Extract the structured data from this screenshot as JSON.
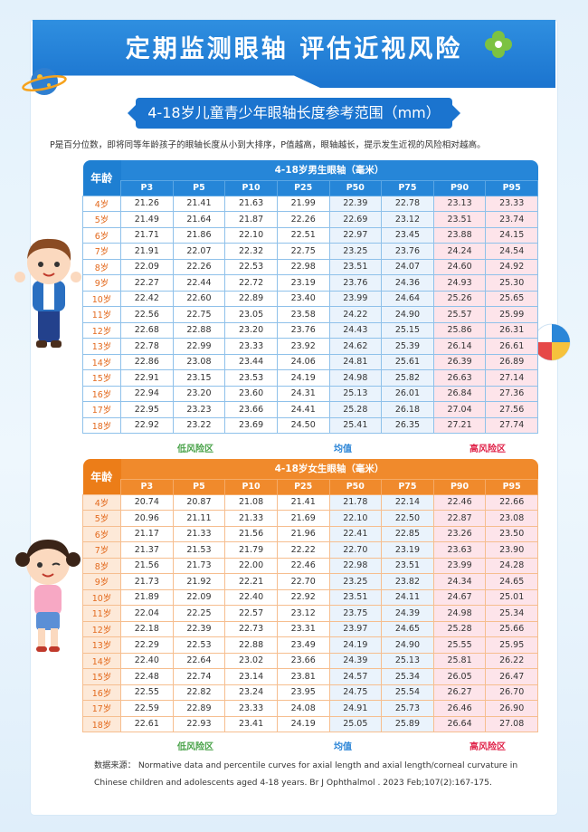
{
  "banner_title": "定期监测眼轴  评估近视风险",
  "subtitle": "4-18岁儿童青少年眼轴长度参考范围（mm）",
  "intro": "P是百分位数，即将同等年龄孩子的眼轴长度从小到大排序，P值越高，眼轴越长，提示发生近视的风险相对越高。",
  "age_header": "年龄",
  "percentiles": [
    "P3",
    "P5",
    "P10",
    "P25",
    "P50",
    "P75",
    "P90",
    "P95"
  ],
  "legend": {
    "low": "低风险区",
    "mid": "均值",
    "high": "高风险区"
  },
  "boys": {
    "title": "4-18岁男生眼轴（毫米）",
    "rows": [
      {
        "age": "4岁",
        "v": [
          "21.26",
          "21.41",
          "21.63",
          "21.99",
          "22.39",
          "22.78",
          "23.13",
          "23.33"
        ]
      },
      {
        "age": "5岁",
        "v": [
          "21.49",
          "21.64",
          "21.87",
          "22.26",
          "22.69",
          "23.12",
          "23.51",
          "23.74"
        ]
      },
      {
        "age": "6岁",
        "v": [
          "21.71",
          "21.86",
          "22.10",
          "22.51",
          "22.97",
          "23.45",
          "23.88",
          "24.15"
        ]
      },
      {
        "age": "7岁",
        "v": [
          "21.91",
          "22.07",
          "22.32",
          "22.75",
          "23.25",
          "23.76",
          "24.24",
          "24.54"
        ]
      },
      {
        "age": "8岁",
        "v": [
          "22.09",
          "22.26",
          "22.53",
          "22.98",
          "23.51",
          "24.07",
          "24.60",
          "24.92"
        ]
      },
      {
        "age": "9岁",
        "v": [
          "22.27",
          "22.44",
          "22.72",
          "23.19",
          "23.76",
          "24.36",
          "24.93",
          "25.30"
        ]
      },
      {
        "age": "10岁",
        "v": [
          "22.42",
          "22.60",
          "22.89",
          "23.40",
          "23.99",
          "24.64",
          "25.26",
          "25.65"
        ]
      },
      {
        "age": "11岁",
        "v": [
          "22.56",
          "22.75",
          "23.05",
          "23.58",
          "24.22",
          "24.90",
          "25.57",
          "25.99"
        ]
      },
      {
        "age": "12岁",
        "v": [
          "22.68",
          "22.88",
          "23.20",
          "23.76",
          "24.43",
          "25.15",
          "25.86",
          "26.31"
        ]
      },
      {
        "age": "13岁",
        "v": [
          "22.78",
          "22.99",
          "23.33",
          "23.92",
          "24.62",
          "25.39",
          "26.14",
          "26.61"
        ]
      },
      {
        "age": "14岁",
        "v": [
          "22.86",
          "23.08",
          "23.44",
          "24.06",
          "24.81",
          "25.61",
          "26.39",
          "26.89"
        ]
      },
      {
        "age": "15岁",
        "v": [
          "22.91",
          "23.15",
          "23.53",
          "24.19",
          "24.98",
          "25.82",
          "26.63",
          "27.14"
        ]
      },
      {
        "age": "16岁",
        "v": [
          "22.94",
          "23.20",
          "23.60",
          "24.31",
          "25.13",
          "26.01",
          "26.84",
          "27.36"
        ]
      },
      {
        "age": "17岁",
        "v": [
          "22.95",
          "23.23",
          "23.66",
          "24.41",
          "25.28",
          "26.18",
          "27.04",
          "27.56"
        ]
      },
      {
        "age": "18岁",
        "v": [
          "22.92",
          "23.22",
          "23.69",
          "24.50",
          "25.41",
          "26.35",
          "27.21",
          "27.74"
        ]
      }
    ]
  },
  "girls": {
    "title": "4-18岁女生眼轴（毫米）",
    "rows": [
      {
        "age": "4岁",
        "v": [
          "20.74",
          "20.87",
          "21.08",
          "21.41",
          "21.78",
          "22.14",
          "22.46",
          "22.66"
        ]
      },
      {
        "age": "5岁",
        "v": [
          "20.96",
          "21.11",
          "21.33",
          "21.69",
          "22.10",
          "22.50",
          "22.87",
          "23.08"
        ]
      },
      {
        "age": "6岁",
        "v": [
          "21.17",
          "21.33",
          "21.56",
          "21.96",
          "22.41",
          "22.85",
          "23.26",
          "23.50"
        ]
      },
      {
        "age": "7岁",
        "v": [
          "21.37",
          "21.53",
          "21.79",
          "22.22",
          "22.70",
          "23.19",
          "23.63",
          "23.90"
        ]
      },
      {
        "age": "8岁",
        "v": [
          "21.56",
          "21.73",
          "22.00",
          "22.46",
          "22.98",
          "23.51",
          "23.99",
          "24.28"
        ]
      },
      {
        "age": "9岁",
        "v": [
          "21.73",
          "21.92",
          "22.21",
          "22.70",
          "23.25",
          "23.82",
          "24.34",
          "24.65"
        ]
      },
      {
        "age": "10岁",
        "v": [
          "21.89",
          "22.09",
          "22.40",
          "22.92",
          "23.51",
          "24.11",
          "24.67",
          "25.01"
        ]
      },
      {
        "age": "11岁",
        "v": [
          "22.04",
          "22.25",
          "22.57",
          "23.12",
          "23.75",
          "24.39",
          "24.98",
          "25.34"
        ]
      },
      {
        "age": "12岁",
        "v": [
          "22.18",
          "22.39",
          "22.73",
          "23.31",
          "23.97",
          "24.65",
          "25.28",
          "25.66"
        ]
      },
      {
        "age": "13岁",
        "v": [
          "22.29",
          "22.53",
          "22.88",
          "23.49",
          "24.19",
          "24.90",
          "25.55",
          "25.95"
        ]
      },
      {
        "age": "14岁",
        "v": [
          "22.40",
          "22.64",
          "23.02",
          "23.66",
          "24.39",
          "25.13",
          "25.81",
          "26.22"
        ]
      },
      {
        "age": "15岁",
        "v": [
          "22.48",
          "22.74",
          "23.14",
          "23.81",
          "24.57",
          "25.34",
          "26.05",
          "26.47"
        ]
      },
      {
        "age": "16岁",
        "v": [
          "22.55",
          "22.82",
          "23.24",
          "23.95",
          "24.75",
          "25.54",
          "26.27",
          "26.70"
        ]
      },
      {
        "age": "17岁",
        "v": [
          "22.59",
          "22.89",
          "23.33",
          "24.08",
          "24.91",
          "25.73",
          "26.46",
          "26.90"
        ]
      },
      {
        "age": "18岁",
        "v": [
          "22.61",
          "22.93",
          "23.41",
          "24.19",
          "25.05",
          "25.89",
          "26.64",
          "27.08"
        ]
      }
    ]
  },
  "source_label": "数据来源：",
  "source_text": "Normative data and percentile curves for axial length and axial length/corneal curvature in Chinese children and adolescents aged 4-18 years. Br J Ophthalmol . 2023 Feb;107(2):167-175.",
  "colors": {
    "blue": "#2686d8",
    "orange": "#f08a2c",
    "low_green": "#4aa34a",
    "high_red": "#e0244a"
  }
}
